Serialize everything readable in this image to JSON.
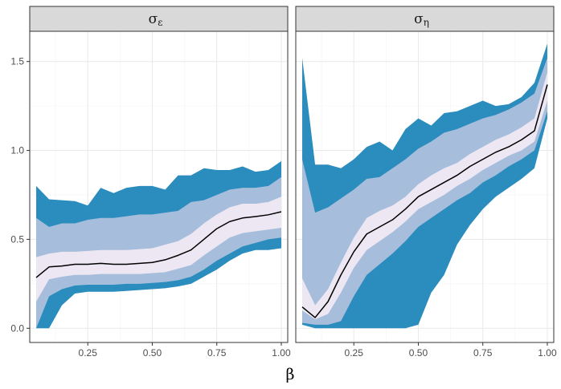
{
  "chart_data": {
    "type": "area",
    "xlabel": "β",
    "ylabel": "",
    "x_ticks": [
      "0.25",
      "0.50",
      "0.75",
      "1.00"
    ],
    "y_ticks": [
      "0.0",
      "0.5",
      "1.0",
      "1.5"
    ],
    "xlim": [
      0.025,
      1.025
    ],
    "ylim": [
      -0.08,
      1.67
    ],
    "grid": true,
    "colors": {
      "outer_band": "#2b8cbe",
      "middle_band": "#a6bddb",
      "inner_band": "#ece7f2",
      "median": "#000000",
      "strip_bg": "#d9d9d9",
      "panel_border": "#333333",
      "grid": "#ebebeb"
    },
    "panels": [
      {
        "title": "σε",
        "title_main": "σ",
        "title_sub": "ε",
        "x": [
          0.05,
          0.1,
          0.15,
          0.2,
          0.25,
          0.3,
          0.35,
          0.4,
          0.45,
          0.5,
          0.55,
          0.6,
          0.65,
          0.7,
          0.75,
          0.8,
          0.85,
          0.9,
          0.95,
          1.0
        ],
        "median": [
          0.285,
          0.345,
          0.35,
          0.36,
          0.36,
          0.365,
          0.36,
          0.36,
          0.365,
          0.37,
          0.385,
          0.41,
          0.44,
          0.5,
          0.56,
          0.6,
          0.62,
          0.628,
          0.638,
          0.655
        ],
        "inner_lo": [
          0.15,
          0.275,
          0.29,
          0.3,
          0.3,
          0.305,
          0.305,
          0.305,
          0.305,
          0.31,
          0.315,
          0.335,
          0.355,
          0.41,
          0.46,
          0.51,
          0.535,
          0.545,
          0.555,
          0.565
        ],
        "inner_hi": [
          0.4,
          0.42,
          0.43,
          0.43,
          0.435,
          0.44,
          0.44,
          0.44,
          0.445,
          0.45,
          0.47,
          0.49,
          0.53,
          0.59,
          0.64,
          0.68,
          0.7,
          0.7,
          0.71,
          0.74
        ],
        "middle_lo": [
          0.0,
          0.18,
          0.22,
          0.24,
          0.245,
          0.245,
          0.245,
          0.25,
          0.25,
          0.255,
          0.26,
          0.27,
          0.29,
          0.33,
          0.38,
          0.42,
          0.46,
          0.48,
          0.5,
          0.51
        ],
        "middle_hi": [
          0.62,
          0.57,
          0.59,
          0.59,
          0.61,
          0.62,
          0.62,
          0.63,
          0.64,
          0.64,
          0.65,
          0.66,
          0.71,
          0.72,
          0.75,
          0.78,
          0.79,
          0.79,
          0.8,
          0.85
        ],
        "outer_lo": [
          0.0,
          0.0,
          0.13,
          0.195,
          0.205,
          0.205,
          0.205,
          0.21,
          0.215,
          0.22,
          0.225,
          0.235,
          0.25,
          0.29,
          0.33,
          0.38,
          0.42,
          0.44,
          0.44,
          0.45
        ],
        "outer_hi": [
          0.8,
          0.725,
          0.72,
          0.715,
          0.69,
          0.79,
          0.76,
          0.79,
          0.8,
          0.8,
          0.78,
          0.86,
          0.86,
          0.9,
          0.89,
          0.89,
          0.91,
          0.88,
          0.89,
          0.94
        ]
      },
      {
        "title": "ση",
        "title_main": "σ",
        "title_sub": "η",
        "x": [
          0.05,
          0.1,
          0.15,
          0.2,
          0.25,
          0.3,
          0.35,
          0.4,
          0.45,
          0.5,
          0.55,
          0.6,
          0.65,
          0.7,
          0.75,
          0.8,
          0.85,
          0.9,
          0.95,
          1.0
        ],
        "median": [
          0.12,
          0.06,
          0.15,
          0.3,
          0.43,
          0.53,
          0.57,
          0.61,
          0.67,
          0.74,
          0.78,
          0.82,
          0.86,
          0.91,
          0.95,
          0.99,
          1.02,
          1.06,
          1.11,
          1.37
        ],
        "inner_lo": [
          0.1,
          0.05,
          0.08,
          0.2,
          0.34,
          0.44,
          0.49,
          0.54,
          0.6,
          0.67,
          0.71,
          0.75,
          0.8,
          0.84,
          0.89,
          0.93,
          0.97,
          1.0,
          1.05,
          1.28
        ],
        "inner_hi": [
          0.28,
          0.13,
          0.22,
          0.37,
          0.51,
          0.62,
          0.66,
          0.69,
          0.74,
          0.81,
          0.86,
          0.9,
          0.93,
          0.98,
          1.02,
          1.06,
          1.09,
          1.13,
          1.18,
          1.44
        ],
        "middle_lo": [
          0.03,
          0.02,
          0.02,
          0.04,
          0.18,
          0.3,
          0.36,
          0.42,
          0.49,
          0.57,
          0.62,
          0.67,
          0.72,
          0.76,
          0.82,
          0.86,
          0.91,
          0.95,
          1.0,
          1.22
        ],
        "middle_hi": [
          0.95,
          0.65,
          0.68,
          0.73,
          0.78,
          0.84,
          0.85,
          0.9,
          0.95,
          1.01,
          1.05,
          1.1,
          1.12,
          1.15,
          1.18,
          1.2,
          1.23,
          1.27,
          1.32,
          1.52
        ],
        "outer_lo": [
          0.02,
          0.0,
          0.0,
          0.0,
          0.0,
          0.0,
          0.0,
          0.0,
          0.0,
          0.02,
          0.2,
          0.3,
          0.47,
          0.58,
          0.67,
          0.74,
          0.79,
          0.84,
          0.9,
          1.18
        ],
        "outer_hi": [
          1.52,
          0.92,
          0.92,
          0.9,
          0.95,
          1.02,
          1.05,
          1.0,
          1.12,
          1.18,
          1.14,
          1.21,
          1.22,
          1.25,
          1.28,
          1.25,
          1.26,
          1.3,
          1.38,
          1.6
        ]
      }
    ]
  }
}
